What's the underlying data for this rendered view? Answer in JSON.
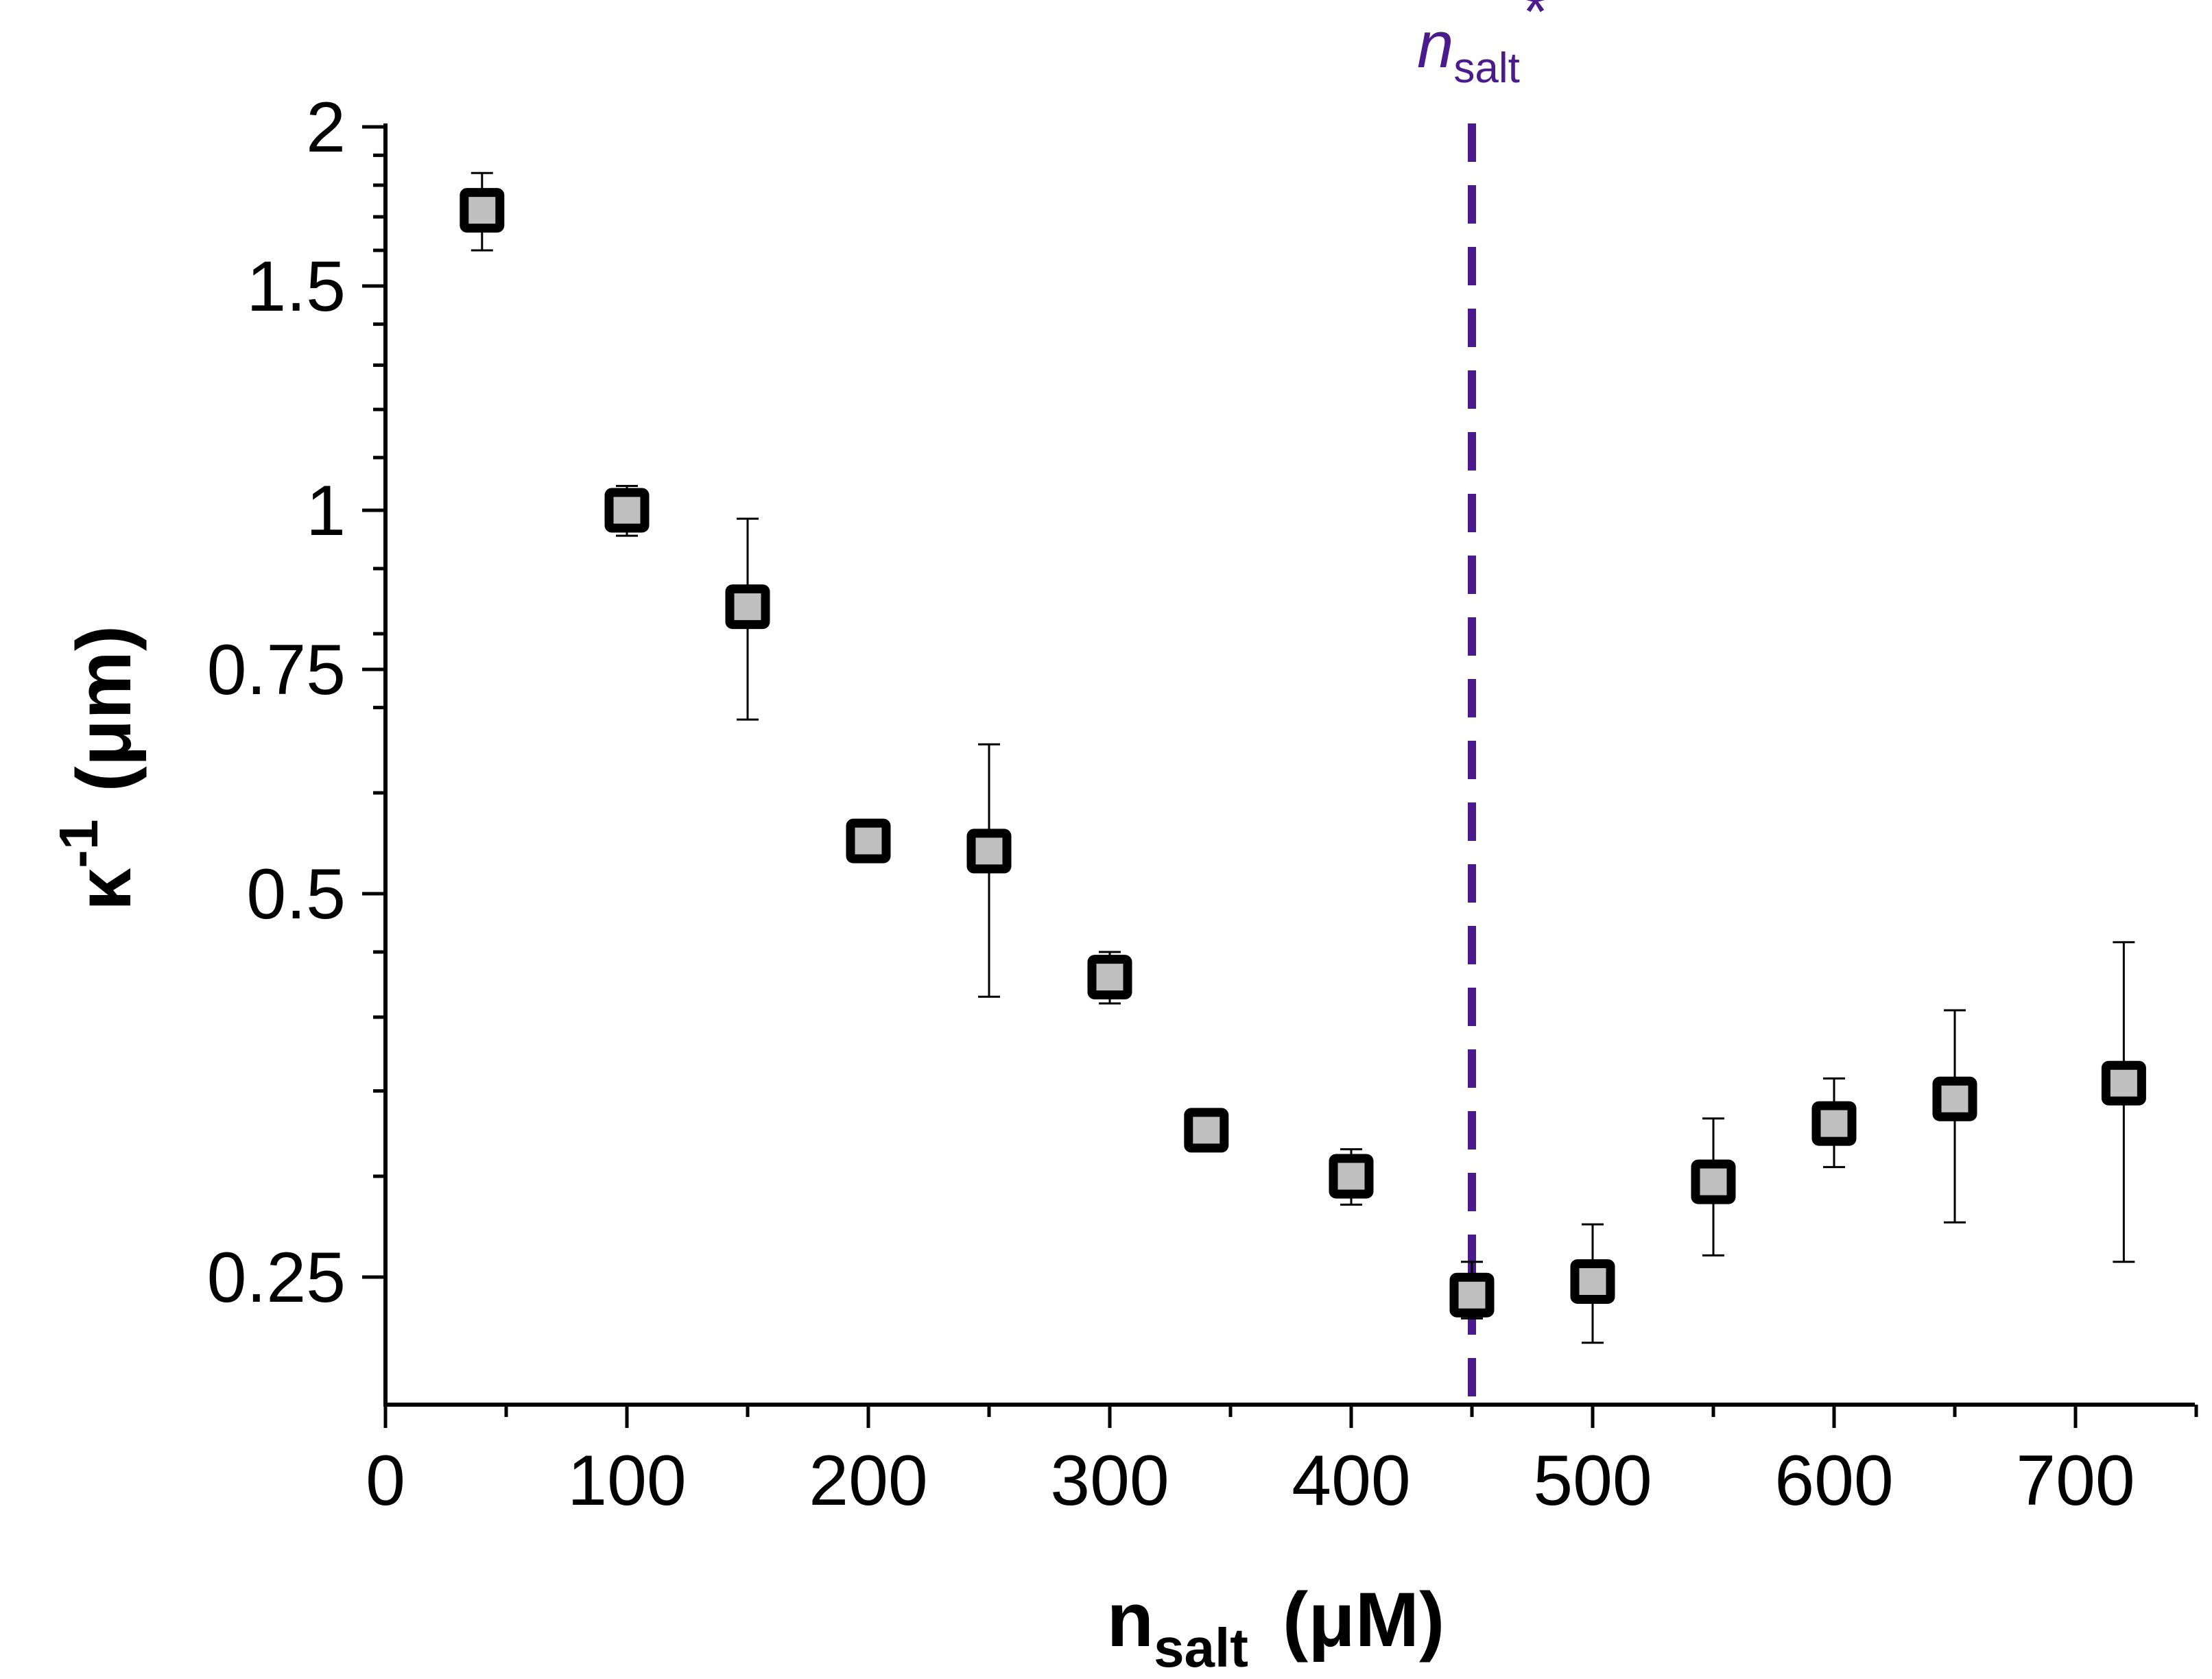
{
  "chart_data": {
    "type": "scatter",
    "y_scale": "log",
    "xlim": [
      0,
      750
    ],
    "ylim": [
      0.21,
      2
    ],
    "x_ticks": [
      0,
      100,
      200,
      300,
      400,
      500,
      600,
      700
    ],
    "x_tick_labels": [
      "0",
      "100",
      "200",
      "300",
      "400",
      "500",
      "600",
      "700"
    ],
    "y_ticks": [
      0.25,
      0.5,
      0.75,
      1,
      1.5,
      2
    ],
    "y_tick_labels": [
      "0.25",
      "0.5",
      "0.75",
      "1",
      "1.5",
      "2"
    ],
    "xlabel": {
      "main": "n",
      "sub": "salt",
      "unit": "(μM)"
    },
    "ylabel": {
      "main": "κ",
      "sup": "-1",
      "unit": "(μm)"
    },
    "vertical_line": {
      "x": 450,
      "label_main": "n",
      "label_sub": "salt",
      "label_sup": "*",
      "color": "#4b1a8c"
    },
    "marker": {
      "shape": "square",
      "fill": "#c0c0c0",
      "stroke": "#000000"
    },
    "series": [
      {
        "name": "κ⁻¹",
        "points": [
          {
            "x": 40,
            "y": 1.72,
            "err_low": 1.6,
            "err_high": 1.84
          },
          {
            "x": 100,
            "y": 1.0,
            "err_low": 0.955,
            "err_high": 1.045
          },
          {
            "x": 150,
            "y": 0.84,
            "err_low": 0.685,
            "err_high": 0.985
          },
          {
            "x": 200,
            "y": 0.55,
            "err_low": 0.53,
            "err_high": 0.57
          },
          {
            "x": 250,
            "y": 0.54,
            "err_low": 0.415,
            "err_high": 0.655
          },
          {
            "x": 300,
            "y": 0.43,
            "err_low": 0.41,
            "err_high": 0.45
          },
          {
            "x": 340,
            "y": 0.326,
            "err_low": 0.326,
            "err_high": 0.326
          },
          {
            "x": 400,
            "y": 0.3,
            "err_low": 0.285,
            "err_high": 0.315
          },
          {
            "x": 450,
            "y": 0.242,
            "err_low": 0.232,
            "err_high": 0.257
          },
          {
            "x": 500,
            "y": 0.248,
            "err_low": 0.222,
            "err_high": 0.275
          },
          {
            "x": 550,
            "y": 0.297,
            "err_low": 0.26,
            "err_high": 0.333
          },
          {
            "x": 600,
            "y": 0.33,
            "err_low": 0.305,
            "err_high": 0.358
          },
          {
            "x": 650,
            "y": 0.345,
            "err_low": 0.276,
            "err_high": 0.405
          },
          {
            "x": 720,
            "y": 0.355,
            "err_low": 0.257,
            "err_high": 0.458
          }
        ]
      }
    ]
  }
}
